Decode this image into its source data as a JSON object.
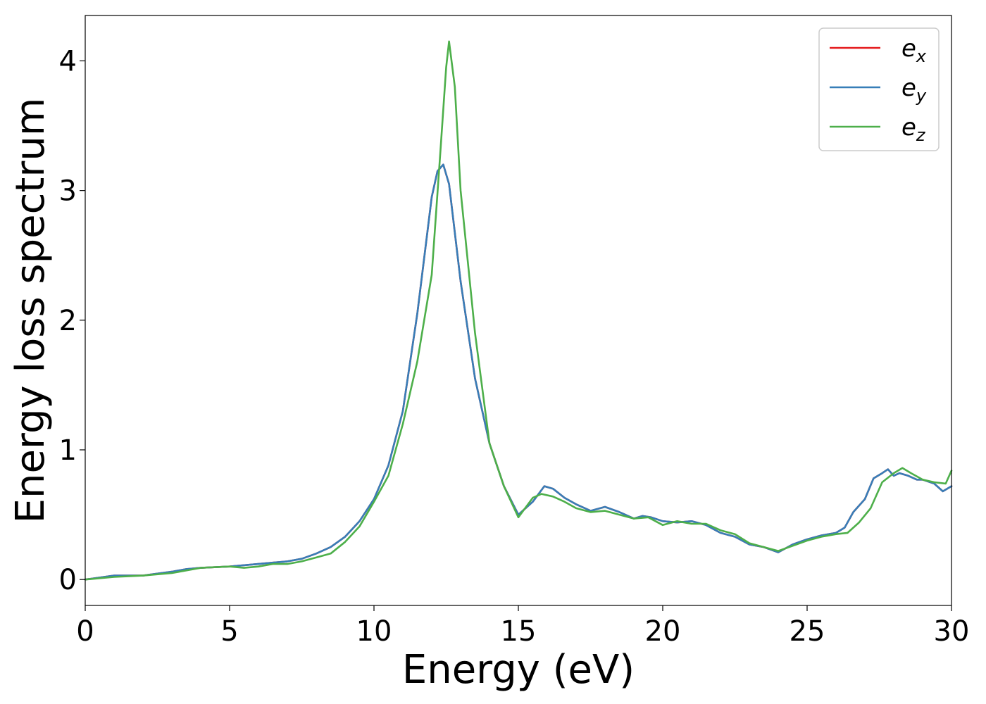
{
  "chart_data": {
    "type": "line",
    "title": "",
    "xlabel": "Energy (eV)",
    "ylabel": "Energy loss spectrum",
    "xlim": [
      0,
      30
    ],
    "ylim": [
      -0.2,
      4.35
    ],
    "xticks": [
      0,
      5,
      10,
      15,
      20,
      25,
      30
    ],
    "yticks": [
      0,
      1,
      2,
      3,
      4
    ],
    "grid": false,
    "legend_position": "top-right",
    "series": [
      {
        "name": "e_x",
        "label_base": "e",
        "label_sub": "x",
        "color": "#e41a1c",
        "x": [
          0,
          1,
          2,
          3,
          3.5,
          4,
          5,
          6,
          6.5,
          7,
          7.5,
          8,
          8.5,
          9,
          9.5,
          10,
          10.5,
          11,
          11.5,
          12,
          12.2,
          12.4,
          12.6,
          13,
          13.5,
          14,
          14.5,
          15,
          15.5,
          15.9,
          16.2,
          16.6,
          17,
          17.5,
          18,
          18.5,
          19,
          19.3,
          19.6,
          20,
          20.5,
          21,
          21.5,
          22,
          22.5,
          23,
          23.5,
          24,
          24.5,
          25,
          25.5,
          26,
          26.3,
          26.6,
          27,
          27.3,
          27.6,
          27.8,
          28,
          28.2,
          28.5,
          28.8,
          29,
          29.4,
          29.7,
          30
        ],
        "y": [
          0.0,
          0.03,
          0.03,
          0.06,
          0.08,
          0.09,
          0.1,
          0.12,
          0.13,
          0.14,
          0.16,
          0.2,
          0.25,
          0.33,
          0.45,
          0.62,
          0.88,
          1.3,
          2.05,
          2.95,
          3.15,
          3.2,
          3.05,
          2.3,
          1.55,
          1.05,
          0.72,
          0.5,
          0.6,
          0.72,
          0.7,
          0.63,
          0.58,
          0.53,
          0.56,
          0.52,
          0.47,
          0.49,
          0.48,
          0.45,
          0.44,
          0.45,
          0.42,
          0.36,
          0.33,
          0.27,
          0.25,
          0.21,
          0.27,
          0.31,
          0.34,
          0.36,
          0.4,
          0.52,
          0.62,
          0.78,
          0.82,
          0.85,
          0.8,
          0.82,
          0.8,
          0.77,
          0.77,
          0.74,
          0.68,
          0.72
        ]
      },
      {
        "name": "e_y",
        "label_base": "e",
        "label_sub": "y",
        "color": "#377eb8",
        "x": [
          0,
          1,
          2,
          3,
          3.5,
          4,
          5,
          6,
          6.5,
          7,
          7.5,
          8,
          8.5,
          9,
          9.5,
          10,
          10.5,
          11,
          11.5,
          12,
          12.2,
          12.4,
          12.6,
          13,
          13.5,
          14,
          14.5,
          15,
          15.5,
          15.9,
          16.2,
          16.6,
          17,
          17.5,
          18,
          18.5,
          19,
          19.3,
          19.6,
          20,
          20.5,
          21,
          21.5,
          22,
          22.5,
          23,
          23.5,
          24,
          24.5,
          25,
          25.5,
          26,
          26.3,
          26.6,
          27,
          27.3,
          27.6,
          27.8,
          28,
          28.2,
          28.5,
          28.8,
          29,
          29.4,
          29.7,
          30
        ],
        "y": [
          0.0,
          0.03,
          0.03,
          0.06,
          0.08,
          0.09,
          0.1,
          0.12,
          0.13,
          0.14,
          0.16,
          0.2,
          0.25,
          0.33,
          0.45,
          0.62,
          0.88,
          1.3,
          2.05,
          2.95,
          3.15,
          3.2,
          3.05,
          2.3,
          1.55,
          1.05,
          0.72,
          0.5,
          0.6,
          0.72,
          0.7,
          0.63,
          0.58,
          0.53,
          0.56,
          0.52,
          0.47,
          0.49,
          0.48,
          0.45,
          0.44,
          0.45,
          0.42,
          0.36,
          0.33,
          0.27,
          0.25,
          0.21,
          0.27,
          0.31,
          0.34,
          0.36,
          0.4,
          0.52,
          0.62,
          0.78,
          0.82,
          0.85,
          0.8,
          0.82,
          0.8,
          0.77,
          0.77,
          0.74,
          0.68,
          0.72
        ]
      },
      {
        "name": "e_z",
        "label_base": "e",
        "label_sub": "z",
        "color": "#4daf4a",
        "x": [
          0,
          1,
          2,
          3,
          4,
          5,
          5.5,
          6,
          6.5,
          7,
          7.5,
          8,
          8.5,
          9,
          9.5,
          10,
          10.5,
          11,
          11.5,
          12,
          12.3,
          12.5,
          12.6,
          12.8,
          13,
          13.5,
          14,
          14.5,
          15,
          15.5,
          15.8,
          16.2,
          16.6,
          17,
          17.5,
          18,
          18.5,
          19,
          19.5,
          20,
          20.5,
          21,
          21.5,
          22,
          22.5,
          23,
          23.5,
          24,
          24.5,
          25,
          25.5,
          26,
          26.4,
          26.8,
          27.2,
          27.6,
          28,
          28.3,
          28.6,
          29,
          29.4,
          29.8,
          30
        ],
        "y": [
          0.0,
          0.02,
          0.03,
          0.05,
          0.09,
          0.1,
          0.09,
          0.1,
          0.12,
          0.12,
          0.14,
          0.17,
          0.2,
          0.29,
          0.41,
          0.6,
          0.8,
          1.2,
          1.68,
          2.35,
          3.3,
          3.95,
          4.15,
          3.8,
          3.0,
          1.9,
          1.05,
          0.72,
          0.48,
          0.63,
          0.66,
          0.64,
          0.6,
          0.55,
          0.52,
          0.53,
          0.5,
          0.47,
          0.48,
          0.42,
          0.45,
          0.43,
          0.43,
          0.38,
          0.35,
          0.28,
          0.25,
          0.22,
          0.26,
          0.3,
          0.33,
          0.35,
          0.36,
          0.44,
          0.55,
          0.75,
          0.82,
          0.86,
          0.82,
          0.77,
          0.75,
          0.74,
          0.84
        ]
      }
    ]
  }
}
